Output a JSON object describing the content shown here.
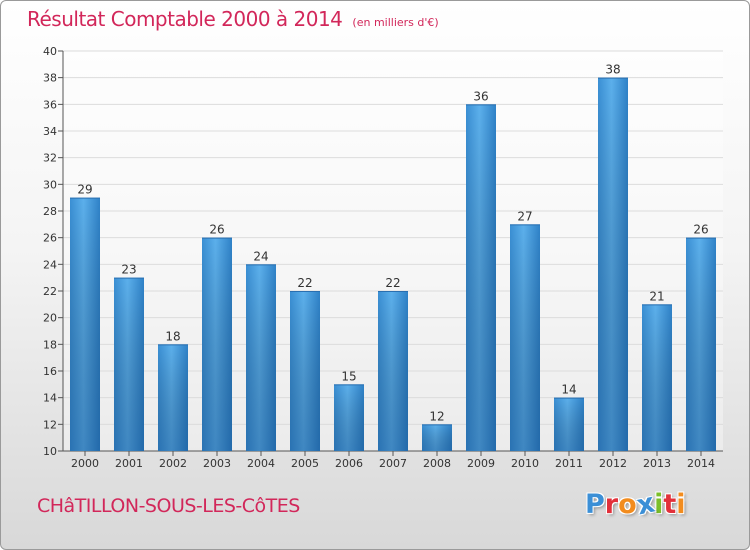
{
  "title": "Résultat Comptable 2000 à 2014",
  "subtitle": "(en milliers d'€)",
  "town": "CHâTILLON-SOUS-LES-CôTES",
  "logo": {
    "text": "Proxiti",
    "letters": [
      {
        "ch": "P",
        "color": "#3b8fd6"
      },
      {
        "ch": "r",
        "color": "#e2303a"
      },
      {
        "ch": "o",
        "color": "#f28c1e"
      },
      {
        "ch": "x",
        "color": "#3b8fd6"
      },
      {
        "ch": "i",
        "color": "#7cbf2a"
      },
      {
        "ch": "t",
        "color": "#e2303a"
      },
      {
        "ch": "i",
        "color": "#f28c1e"
      }
    ]
  },
  "chart_data": {
    "type": "bar",
    "title": "Résultat Comptable 2000 à 2014",
    "subtitle": "(en milliers d'€)",
    "categories": [
      "2000",
      "2001",
      "2002",
      "2003",
      "2004",
      "2005",
      "2006",
      "2007",
      "2008",
      "2009",
      "2010",
      "2011",
      "2012",
      "2013",
      "2014"
    ],
    "values": [
      29,
      23,
      18,
      26,
      24,
      22,
      15,
      22,
      12,
      36,
      27,
      14,
      38,
      21,
      26
    ],
    "yticks": [
      "10",
      "12",
      "14",
      "16",
      "18",
      "20",
      "22",
      "24",
      "26",
      "28",
      "30",
      "32",
      "34",
      "36",
      "38",
      "40"
    ],
    "ylim": [
      10,
      40
    ],
    "grid": "horizontal",
    "bar_color": "#4a9ee0"
  }
}
